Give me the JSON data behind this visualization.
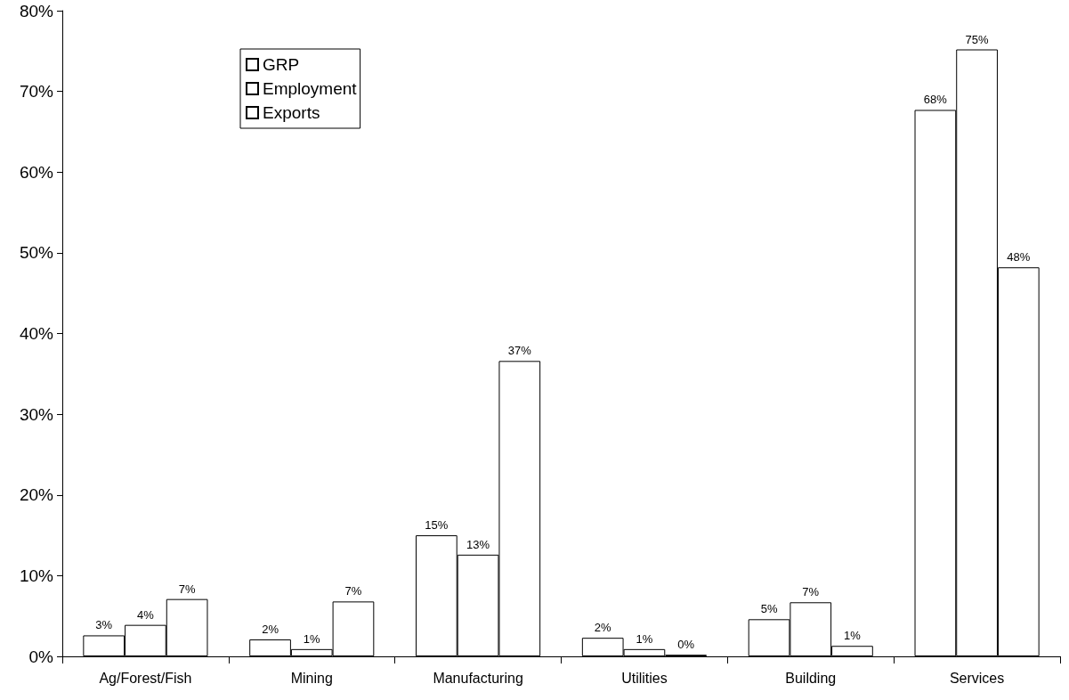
{
  "chart_data": {
    "type": "bar",
    "categories": [
      "Ag/Forest/Fish",
      "Mining",
      "Manufacturing",
      "Utilities",
      "Building",
      "Services"
    ],
    "series": [
      {
        "name": "GRP",
        "color": "#ffffff",
        "values": [
          2.6,
          2.1,
          15.0,
          2.3,
          4.6,
          67.7
        ],
        "value_labels": [
          "3%",
          "2%",
          "15%",
          "2%",
          "5%",
          "68%"
        ]
      },
      {
        "name": "Employment",
        "color": "#ffffff",
        "values": [
          3.9,
          0.9,
          12.6,
          0.9,
          6.7,
          75.2
        ],
        "value_labels": [
          "4%",
          "1%",
          "13%",
          "1%",
          "7%",
          "75%"
        ]
      },
      {
        "name": "Exports",
        "color": "#ffffff",
        "values": [
          7.1,
          6.8,
          36.6,
          0.2,
          1.3,
          48.2
        ],
        "value_labels": [
          "7%",
          "7%",
          "37%",
          "0%",
          "1%",
          "48%"
        ]
      }
    ],
    "ylim": [
      0,
      80
    ],
    "yticks": [
      {
        "value": 0,
        "label": "0%"
      },
      {
        "value": 10,
        "label": "10%"
      },
      {
        "value": 20,
        "label": "20%"
      },
      {
        "value": 30,
        "label": "30%"
      },
      {
        "value": 40,
        "label": "40%"
      },
      {
        "value": 50,
        "label": "50%"
      },
      {
        "value": 60,
        "label": "60%"
      },
      {
        "value": 70,
        "label": "70%"
      },
      {
        "value": 80,
        "label": "80%"
      }
    ],
    "grid": false,
    "legend": "top left"
  }
}
